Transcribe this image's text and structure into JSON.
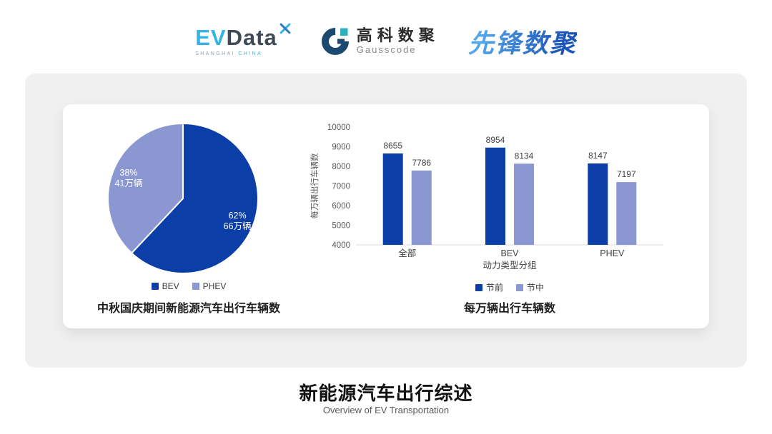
{
  "header": {
    "evdata": {
      "ev": "EV",
      "data_part": "Data",
      "sub_left": "SHANGHAI",
      "sub_right": "CHINA"
    },
    "gausscode": {
      "cn": "高科数聚",
      "en": "Gausscode"
    },
    "xianfeng": {
      "text": "先锋数聚"
    }
  },
  "colors": {
    "primary_blue": "#0C3EA8",
    "secondary_blue": "#8B97D1",
    "panel_gray": "#F0F0F0",
    "axis_text": "#595959",
    "baseline": "#D9D9D9"
  },
  "chart_data": [
    {
      "type": "pie",
      "title": "中秋国庆期间新能源汽车出行车辆数",
      "legend_position": "bottom",
      "label_color": "#FFFFFF",
      "slices": [
        {
          "name": "BEV",
          "percent": 62,
          "percent_label": "62%",
          "value_label": "66万辆",
          "color": "#0C3EA8"
        },
        {
          "name": "PHEV",
          "percent": 38,
          "percent_label": "38%",
          "value_label": "41万辆",
          "color": "#8B97D1"
        }
      ]
    },
    {
      "type": "bar",
      "title": "每万辆出行车辆数",
      "categories": [
        "全部",
        "BEV",
        "PHEV"
      ],
      "series": [
        {
          "name": "节前",
          "values": [
            8655,
            8954,
            8147
          ],
          "color": "#0C3EA8"
        },
        {
          "name": "节中",
          "values": [
            7786,
            8134,
            7197
          ],
          "color": "#8B97D1"
        }
      ],
      "xlabel": "动力类型分组",
      "ylabel": "每万辆出行车辆数",
      "ylim": [
        4000,
        10000
      ],
      "yticks": [
        4000,
        5000,
        6000,
        7000,
        8000,
        9000,
        10000
      ],
      "grid": false,
      "legend_position": "bottom"
    }
  ],
  "footer": {
    "title": "新能源汽车出行综述",
    "subtitle": "Overview of EV Transportation"
  }
}
